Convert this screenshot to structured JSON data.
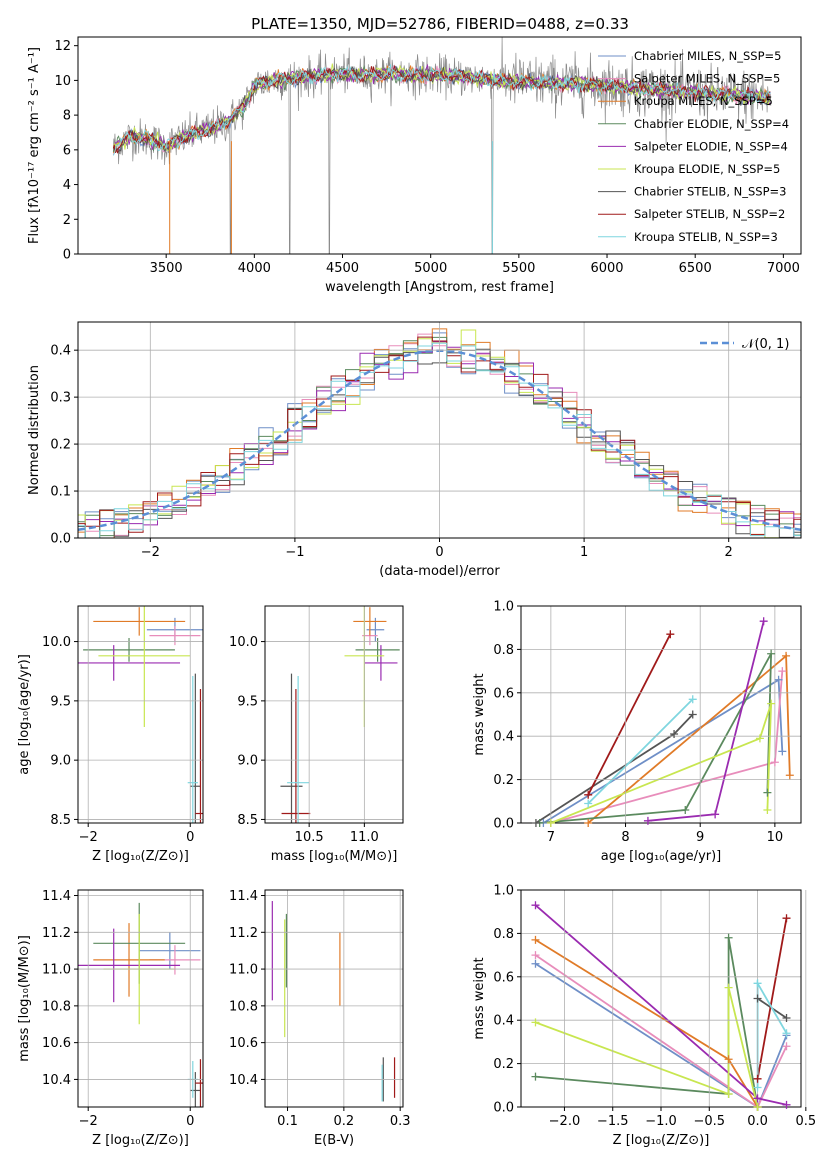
{
  "figure_title": "PLATE=1350, MJD=52786, FIBERID=0488, z=0.33",
  "colors": {
    "chabrier_miles": "#6f8fc7",
    "salpeter_miles": "#e88dbb",
    "kroupa_miles": "#e07b28",
    "chabrier_elodie": "#5b8a5e",
    "salpeter_elodie": "#9a2bb0",
    "kroupa_elodie": "#c8e650",
    "chabrier_stelib": "#555555",
    "salpeter_stelib": "#a01a1a",
    "kroupa_stelib": "#7fd6df",
    "data_gray": "#8a8a8a",
    "normal_curve": "#5b8fd6"
  },
  "chart_data": [
    {
      "id": "spectrum",
      "type": "line",
      "title": "PLATE=1350, MJD=52786, FIBERID=0488, z=0.33",
      "xlabel": "wavelength [Angstrom, rest frame]",
      "ylabel": "Flux [fλ10⁻¹⁷ erg cm⁻² s⁻¹ A⁻¹]",
      "xlim": [
        3000,
        7100
      ],
      "ylim": [
        0,
        12.5
      ],
      "xticks": [
        "3500",
        "4000",
        "4500",
        "5000",
        "5500",
        "6000",
        "6500",
        "7000"
      ],
      "yticks": [
        "0",
        "2",
        "4",
        "6",
        "8",
        "10",
        "12"
      ],
      "legend_position": "upper-right",
      "legend": [
        {
          "label": "Chabrier MILES, N_SSP=5"
        },
        {
          "label": "Salpeter MILES, N_SSP=5"
        },
        {
          "label": "Kroupa MILES, N_SSP=5"
        },
        {
          "label": "Chabrier ELODIE, N_SSP=4"
        },
        {
          "label": "Salpeter ELODIE, N_SSP=4"
        },
        {
          "label": "Kroupa ELODIE, N_SSP=5"
        },
        {
          "label": "Chabrier STELIB, N_SSP=3"
        },
        {
          "label": "Salpeter STELIB, N_SSP=2"
        },
        {
          "label": "Kroupa STELIB, N_SSP=3"
        }
      ],
      "continuum": [
        [
          3200,
          6.1
        ],
        [
          3300,
          6.8
        ],
        [
          3400,
          6.6
        ],
        [
          3500,
          6.2
        ],
        [
          3550,
          6.5
        ],
        [
          3650,
          6.9
        ],
        [
          3750,
          7.2
        ],
        [
          3850,
          7.6
        ],
        [
          3950,
          8.6
        ],
        [
          4000,
          9.7
        ],
        [
          4100,
          10.0
        ],
        [
          4200,
          10.1
        ],
        [
          4300,
          10.2
        ],
        [
          4400,
          10.3
        ],
        [
          4500,
          10.4
        ],
        [
          4600,
          10.3
        ],
        [
          4700,
          10.3
        ],
        [
          4800,
          10.4
        ],
        [
          4900,
          10.3
        ],
        [
          5000,
          10.3
        ],
        [
          5200,
          10.2
        ],
        [
          5400,
          10.0
        ],
        [
          5600,
          9.9
        ],
        [
          5800,
          9.8
        ],
        [
          6000,
          9.7
        ],
        [
          6200,
          9.5
        ],
        [
          6400,
          9.4
        ],
        [
          6600,
          9.2
        ],
        [
          6800,
          9.1
        ],
        [
          6900,
          9.0
        ]
      ]
    },
    {
      "id": "residuals",
      "type": "bar",
      "xlabel": "(data-model)/error",
      "ylabel": "Normed distribution",
      "xlim": [
        -2.5,
        2.5
      ],
      "ylim": [
        0,
        0.46
      ],
      "xticks": [
        "−2",
        "−1",
        "0",
        "1",
        "2"
      ],
      "yticks": [
        "0.0",
        "0.1",
        "0.2",
        "0.3",
        "0.4"
      ],
      "legend": [
        {
          "label": "𝒩(0, 1)"
        }
      ],
      "legend_position": "upper-right",
      "bin_width": 0.1
    },
    {
      "id": "age_vs_z",
      "type": "scatter",
      "xlabel": "Z [log₁₀(Z/Z⊙)]",
      "ylabel": "age  [log₁₀(age/yr)]",
      "xlim": [
        -2.2,
        0.25
      ],
      "ylim": [
        8.47,
        10.3
      ],
      "xticks": [
        "−2",
        "0"
      ],
      "yticks": [
        "8.5",
        "9.0",
        "9.5",
        "10.0"
      ],
      "points": [
        {
          "m": "chabrier_miles",
          "x": -0.3,
          "xe": 0.55,
          "y": 10.1,
          "ye": 0.1
        },
        {
          "m": "salpeter_miles",
          "x": -0.3,
          "xe": 0.5,
          "y": 10.05,
          "ye": 0.08
        },
        {
          "m": "kroupa_miles",
          "x": -1.0,
          "xe": 0.9,
          "y": 10.17,
          "ye": 0.12
        },
        {
          "m": "chabrier_elodie",
          "x": -1.2,
          "xe": 0.9,
          "y": 9.93,
          "ye": 0.1
        },
        {
          "m": "salpeter_elodie",
          "x": -1.5,
          "xe": 1.3,
          "y": 9.82,
          "ye": 0.15
        },
        {
          "m": "kroupa_elodie",
          "x": -0.9,
          "xe": 0.9,
          "y": 9.88,
          "ye": 0.6
        },
        {
          "m": "chabrier_stelib",
          "x": 0.1,
          "xe": 0.1,
          "y": 8.78,
          "ye": 0.95
        },
        {
          "m": "salpeter_stelib",
          "x": 0.2,
          "xe": 0.1,
          "y": 8.55,
          "ye": 1.05
        },
        {
          "m": "kroupa_stelib",
          "x": 0.05,
          "xe": 0.1,
          "y": 8.81,
          "ye": 0.9
        }
      ]
    },
    {
      "id": "age_vs_mass",
      "type": "scatter",
      "xlabel": "mass [log₁₀(M/M⊙)]",
      "ylabel": "",
      "xlim": [
        10.1,
        11.35
      ],
      "ylim": [
        8.47,
        10.3
      ],
      "xticks": [
        "10.5",
        "11.0"
      ],
      "yticks": [
        "8.5",
        "9.0",
        "9.5",
        "10.0"
      ],
      "points": [
        {
          "m": "chabrier_miles",
          "x": 11.1,
          "xe": 0.08,
          "y": 10.1,
          "ye": 0.1
        },
        {
          "m": "salpeter_miles",
          "x": 11.05,
          "xe": 0.07,
          "y": 10.05,
          "ye": 0.08
        },
        {
          "m": "kroupa_miles",
          "x": 11.05,
          "xe": 0.15,
          "y": 10.17,
          "ye": 0.12
        },
        {
          "m": "chabrier_elodie",
          "x": 11.12,
          "xe": 0.2,
          "y": 9.93,
          "ye": 0.1
        },
        {
          "m": "salpeter_elodie",
          "x": 11.15,
          "xe": 0.15,
          "y": 9.82,
          "ye": 0.15
        },
        {
          "m": "kroupa_elodie",
          "x": 11.0,
          "xe": 0.18,
          "y": 9.88,
          "ye": 0.6
        },
        {
          "m": "chabrier_stelib",
          "x": 10.34,
          "xe": 0.1,
          "y": 8.78,
          "ye": 0.95
        },
        {
          "m": "salpeter_stelib",
          "x": 10.38,
          "xe": 0.13,
          "y": 8.55,
          "ye": 1.05
        },
        {
          "m": "kroupa_stelib",
          "x": 10.4,
          "xe": 0.1,
          "y": 8.81,
          "ye": 0.9
        }
      ]
    },
    {
      "id": "mw_vs_age",
      "type": "line",
      "xlabel": "age  [log₁₀(age/yr)]",
      "ylabel": "mass weight",
      "xlim": [
        6.6,
        10.35
      ],
      "ylim": [
        0,
        1.0
      ],
      "xticks": [
        "7",
        "8",
        "9",
        "10"
      ],
      "yticks": [
        "0.0",
        "0.2",
        "0.4",
        "0.6",
        "0.8",
        "1.0"
      ],
      "series": [
        {
          "m": "chabrier_miles",
          "x": [
            6.9,
            10.05,
            10.1
          ],
          "y": [
            0.0,
            0.66,
            0.33
          ]
        },
        {
          "m": "salpeter_miles",
          "x": [
            7.0,
            10.0,
            10.1
          ],
          "y": [
            0.0,
            0.28,
            0.7
          ]
        },
        {
          "m": "kroupa_miles",
          "x": [
            7.5,
            10.15,
            10.2
          ],
          "y": [
            0.0,
            0.77,
            0.22
          ]
        },
        {
          "m": "chabrier_elodie",
          "x": [
            6.85,
            8.8,
            9.95,
            9.9
          ],
          "y": [
            0.0,
            0.06,
            0.78,
            0.14
          ]
        },
        {
          "m": "salpeter_elodie",
          "x": [
            8.3,
            9.2,
            9.85
          ],
          "y": [
            0.01,
            0.04,
            0.93
          ]
        },
        {
          "m": "kroupa_elodie",
          "x": [
            7.0,
            9.8,
            9.95,
            9.9
          ],
          "y": [
            0.0,
            0.39,
            0.55,
            0.06
          ]
        },
        {
          "m": "chabrier_stelib",
          "x": [
            6.8,
            8.65,
            8.9
          ],
          "y": [
            0.0,
            0.41,
            0.5
          ]
        },
        {
          "m": "salpeter_stelib",
          "x": [
            7.5,
            8.6
          ],
          "y": [
            0.13,
            0.87
          ]
        },
        {
          "m": "kroupa_stelib",
          "x": [
            7.5,
            8.9
          ],
          "y": [
            0.09,
            0.57
          ]
        }
      ]
    },
    {
      "id": "mass_vs_z",
      "type": "scatter",
      "xlabel": "Z [log₁₀(Z/Z⊙)]",
      "ylabel": "mass [log₁₀(M/M⊙)]",
      "xlim": [
        -2.2,
        0.25
      ],
      "ylim": [
        10.25,
        11.43
      ],
      "xticks": [
        "−2",
        "0"
      ],
      "yticks": [
        "10.4",
        "10.6",
        "10.8",
        "11.0",
        "11.2",
        "11.4"
      ],
      "points": [
        {
          "m": "chabrier_miles",
          "x": -0.4,
          "xe": 0.6,
          "y": 11.1,
          "ye": 0.1
        },
        {
          "m": "salpeter_miles",
          "x": -0.3,
          "xe": 0.5,
          "y": 11.05,
          "ye": 0.08
        },
        {
          "m": "kroupa_miles",
          "x": -1.2,
          "xe": 0.7,
          "y": 11.05,
          "ye": 0.2
        },
        {
          "m": "chabrier_elodie",
          "x": -1.0,
          "xe": 0.9,
          "y": 11.14,
          "ye": 0.22
        },
        {
          "m": "salpeter_elodie",
          "x": -1.5,
          "xe": 1.3,
          "y": 11.02,
          "ye": 0.2
        },
        {
          "m": "kroupa_elodie",
          "x": -1.0,
          "xe": 0.7,
          "y": 11.0,
          "ye": 0.3
        },
        {
          "m": "chabrier_stelib",
          "x": 0.1,
          "xe": 0.1,
          "y": 10.34,
          "ye": 0.1
        },
        {
          "m": "salpeter_stelib",
          "x": 0.2,
          "xe": 0.1,
          "y": 10.38,
          "ye": 0.13
        },
        {
          "m": "kroupa_stelib",
          "x": 0.05,
          "xe": 0.1,
          "y": 10.4,
          "ye": 0.1
        }
      ]
    },
    {
      "id": "mass_vs_ebv",
      "type": "scatter",
      "xlabel": "E(B-V)",
      "ylabel": "",
      "xlim": [
        0.06,
        0.305
      ],
      "ylim": [
        10.25,
        11.43
      ],
      "xticks": [
        "0.1",
        "0.2",
        "0.3"
      ],
      "yticks": [
        "10.4",
        "10.6",
        "10.8",
        "11.0",
        "11.2",
        "11.4"
      ],
      "points": [
        {
          "m": "salpeter_elodie",
          "x": 0.073,
          "ye": 0.27,
          "y": 11.1
        },
        {
          "m": "chabrier_elodie",
          "x": 0.098,
          "ye": 0.2,
          "y": 11.1
        },
        {
          "m": "kroupa_elodie",
          "x": 0.095,
          "ye": 0.32,
          "y": 10.95
        },
        {
          "m": "kroupa_miles",
          "x": 0.193,
          "ye": 0.2,
          "y": 11.0
        },
        {
          "m": "chabrier_stelib",
          "x": 0.27,
          "ye": 0.12,
          "y": 10.4
        },
        {
          "m": "kroupa_stelib",
          "x": 0.268,
          "ye": 0.1,
          "y": 10.38
        },
        {
          "m": "salpeter_stelib",
          "x": 0.29,
          "ye": 0.11,
          "y": 10.41
        }
      ]
    },
    {
      "id": "mw_vs_z",
      "type": "line",
      "xlabel": "Z [log₁₀(Z/Z⊙)]",
      "ylabel": "mass weight",
      "xlim": [
        -2.45,
        0.45
      ],
      "ylim": [
        0,
        1.0
      ],
      "xticks": [
        "−2.0",
        "−1.5",
        "−1.0",
        "−0.5",
        "0.0",
        "0.5"
      ],
      "yticks": [
        "0.0",
        "0.2",
        "0.4",
        "0.6",
        "0.8",
        "1.0"
      ],
      "series": [
        {
          "m": "chabrier_miles",
          "x": [
            -2.3,
            0.0,
            0.3
          ],
          "y": [
            0.66,
            0.0,
            0.33
          ]
        },
        {
          "m": "salpeter_miles",
          "x": [
            -2.3,
            0.0,
            0.3
          ],
          "y": [
            0.7,
            0.0,
            0.28
          ]
        },
        {
          "m": "kroupa_miles",
          "x": [
            -2.3,
            -0.3,
            0.0
          ],
          "y": [
            0.77,
            0.22,
            0.0
          ]
        },
        {
          "m": "chabrier_elodie",
          "x": [
            -2.3,
            -0.3,
            -0.3,
            0.0
          ],
          "y": [
            0.14,
            0.06,
            0.78,
            0.0
          ]
        },
        {
          "m": "salpeter_elodie",
          "x": [
            -2.3,
            0.0,
            0.3
          ],
          "y": [
            0.93,
            0.04,
            0.01
          ]
        },
        {
          "m": "kroupa_elodie",
          "x": [
            -2.3,
            -0.3,
            -0.3,
            0.0
          ],
          "y": [
            0.39,
            0.06,
            0.55,
            0.0
          ]
        },
        {
          "m": "chabrier_stelib",
          "x": [
            0.0,
            0.3
          ],
          "y": [
            0.5,
            0.41
          ]
        },
        {
          "m": "salpeter_stelib",
          "x": [
            0.0,
            0.3
          ],
          "y": [
            0.13,
            0.87
          ]
        },
        {
          "m": "kroupa_stelib",
          "x": [
            0.0,
            0.0,
            0.3
          ],
          "y": [
            0.09,
            0.57,
            0.34
          ]
        }
      ]
    }
  ]
}
